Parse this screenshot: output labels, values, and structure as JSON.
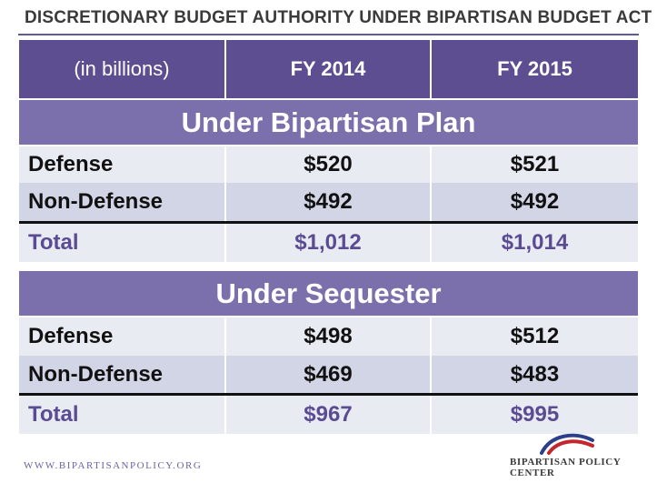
{
  "title": "DISCRETIONARY BUDGET AUTHORITY UNDER BIPARTISAN BUDGET ACT",
  "header": {
    "col1": "(in billions)",
    "col2": "FY 2014",
    "col3": "FY 2015"
  },
  "sections": [
    {
      "heading": "Under Bipartisan Plan",
      "rows": [
        {
          "label": "Defense",
          "fy2014": "$520",
          "fy2015": "$521"
        },
        {
          "label": "Non-Defense",
          "fy2014": "$492",
          "fy2015": "$492"
        }
      ],
      "total": {
        "label": "Total",
        "fy2014": "$1,012",
        "fy2015": "$1,014"
      }
    },
    {
      "heading": "Under Sequester",
      "rows": [
        {
          "label": "Defense",
          "fy2014": "$498",
          "fy2015": "$512"
        },
        {
          "label": "Non-Defense",
          "fy2014": "$469",
          "fy2015": "$483"
        }
      ],
      "total": {
        "label": "Total",
        "fy2014": "$967",
        "fy2015": "$995"
      }
    }
  ],
  "footer": {
    "url": "WWW.BIPARTISANPOLICY.ORG",
    "logo_text": "BIPARTISAN POLICY CENTER",
    "logo_icon": "arc-logo-icon"
  },
  "colors": {
    "header_bg": "#5d4d91",
    "section_bg": "#7b6fac",
    "total_text": "#5b4b93",
    "row_light": "#e9ebf3",
    "row_dark": "#d1d5e5"
  }
}
